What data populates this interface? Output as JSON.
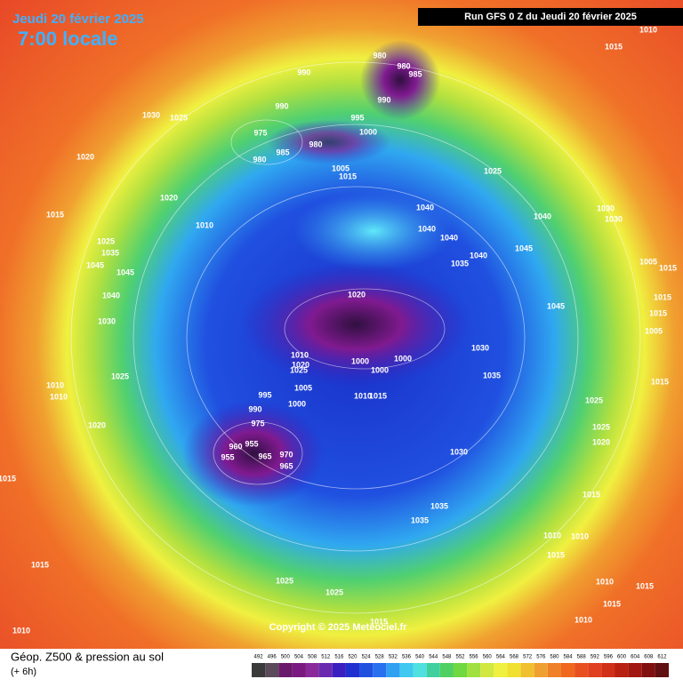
{
  "header": {
    "date": "Jeudi 20 février 2025",
    "time": "7:00 locale",
    "run": "Run GFS 0 Z du Jeudi 20 février 2025"
  },
  "copyright": "Copyright © 2025 Meteociel.fr",
  "footer": {
    "title": "Géop. Z500 & pression au sol",
    "subtitle": "(+ 6h)"
  },
  "legend": {
    "values": [
      492,
      496,
      500,
      504,
      508,
      512,
      516,
      520,
      524,
      528,
      532,
      536,
      540,
      544,
      548,
      552,
      556,
      560,
      564,
      568,
      572,
      576,
      580,
      584,
      588,
      592,
      596,
      600,
      604,
      608,
      612
    ],
    "colors": [
      "#3a3a3a",
      "#5a4a5a",
      "#6a1a6a",
      "#7a1a80",
      "#8a2a9a",
      "#6a2ab0",
      "#3a20c0",
      "#2030d0",
      "#2050e0",
      "#2870f0",
      "#30a0f0",
      "#40c8f0",
      "#50e0e0",
      "#40d0a0",
      "#50d060",
      "#70d840",
      "#a0e040",
      "#d0e840",
      "#f0f040",
      "#f0e030",
      "#f0c030",
      "#f0a030",
      "#f08028",
      "#f06820",
      "#e85020",
      "#e04020",
      "#d03018",
      "#b82010",
      "#a01810",
      "#801010",
      "#601010"
    ]
  },
  "pressure_labels": [
    990,
    980,
    980,
    985,
    990,
    1030,
    1025,
    990,
    995,
    975,
    1000,
    980,
    985,
    980,
    1005,
    1015,
    1025,
    1020,
    1020,
    1040,
    1040,
    1030,
    1030,
    1015,
    1010,
    1040,
    1040,
    1025,
    1035,
    1045,
    1045,
    1045,
    1035,
    1040,
    1005,
    1015,
    1040,
    1020,
    1045,
    1015,
    1030,
    1005,
    1030,
    1010,
    1020,
    1025,
    1000,
    1000,
    1000,
    1005,
    1015,
    1025,
    1035,
    1010,
    1010,
    995,
    1000,
    990,
    975,
    1010,
    1025,
    1020,
    960,
    955,
    955,
    965,
    970,
    965,
    1030,
    1025,
    1020,
    1015,
    1035,
    1035,
    1015,
    1010,
    1010,
    1015,
    1015,
    1025,
    1025,
    1010,
    1015,
    1015,
    1010,
    1010,
    1015,
    1015,
    1010,
    1015,
    1015
  ]
}
